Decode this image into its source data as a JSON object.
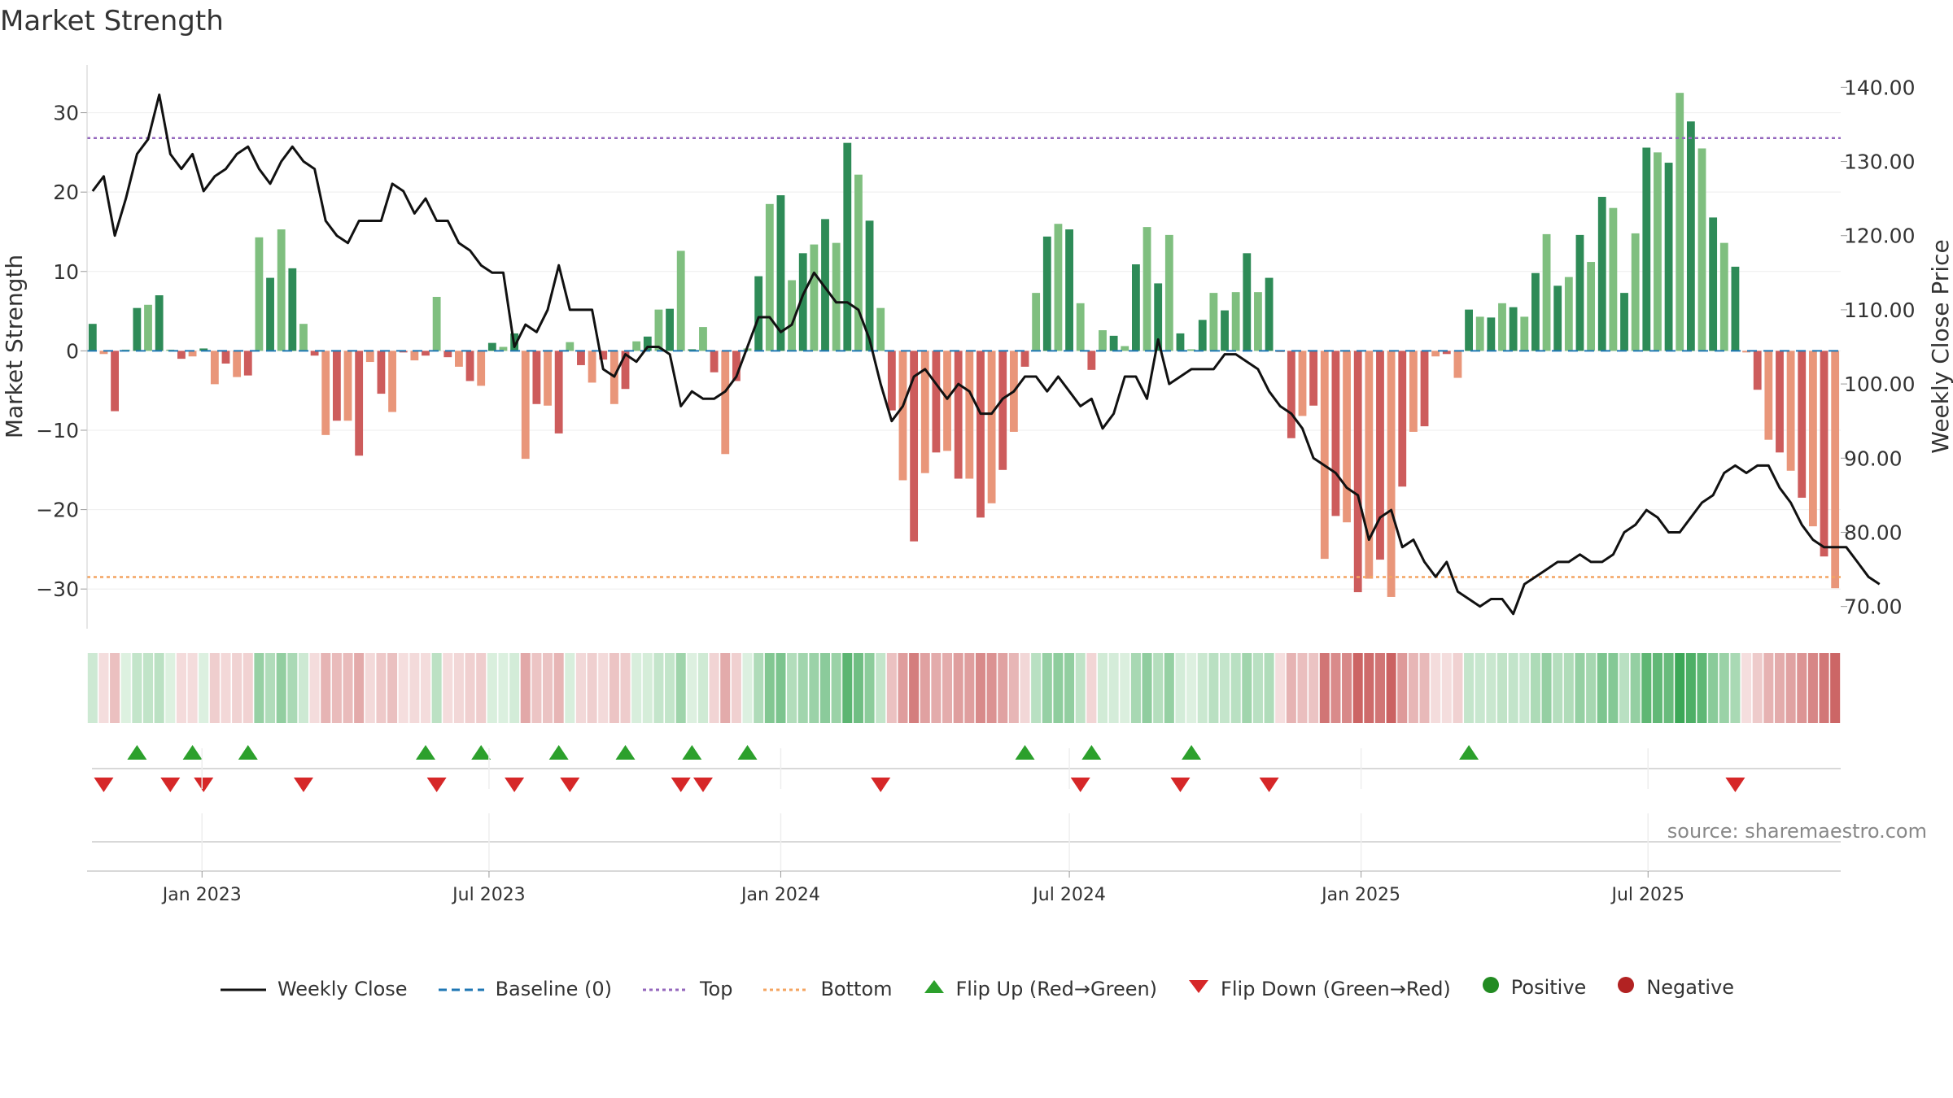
{
  "title": "Market Strength",
  "source": "source: sharemaestro.com",
  "colors": {
    "pos_dark": "#2e8b57",
    "pos_light": "#7fbf7f",
    "neg_dark": "#cd5c5c",
    "neg_light": "#e9967a",
    "close": "#111111",
    "baseline": "#1f77b4",
    "top": "#9467bd",
    "bottom": "#f4a460",
    "flip_up": "#2ca02c",
    "flip_down": "#d62728",
    "positive": "#228b22",
    "negative": "#b22222"
  },
  "legend": [
    {
      "key": "close",
      "label": "Weekly Close",
      "icon": "solid-line"
    },
    {
      "key": "baseline",
      "label": "Baseline (0)",
      "icon": "dashed-line"
    },
    {
      "key": "top",
      "label": "Top",
      "icon": "dotted-line"
    },
    {
      "key": "bottom",
      "label": "Bottom",
      "icon": "dotted-line"
    },
    {
      "key": "flip_up",
      "label": "Flip Up (Red→Green)",
      "icon": "triangle-up"
    },
    {
      "key": "flip_down",
      "label": "Flip Down (Green→Red)",
      "icon": "triangle-down"
    },
    {
      "key": "positive",
      "label": "Positive",
      "icon": "dot"
    },
    {
      "key": "negative",
      "label": "Negative",
      "icon": "dot"
    }
  ],
  "chart_data": {
    "type": "bar",
    "x_start": "2022-10-24",
    "x_step_days": 7,
    "xtick_labels": [
      "Jan 2023",
      "Jul 2023",
      "Jan 2024",
      "Jul 2024",
      "Jan 2025",
      "Jul 2025"
    ],
    "xtick_dates": [
      "2023-01-01",
      "2023-07-01",
      "2024-01-01",
      "2024-07-01",
      "2025-01-01",
      "2025-07-01"
    ],
    "ylabel": "Market Strength",
    "ylim": [
      -35,
      36
    ],
    "yticks": [
      -30,
      -20,
      -10,
      0,
      10,
      20,
      30
    ],
    "ytick_labels": [
      "−30",
      "−20",
      "−10",
      "0",
      "10",
      "20",
      "30"
    ],
    "y2label": "Weekly Close Price",
    "y2lim": [
      67,
      143
    ],
    "y2ticks": [
      70,
      80,
      90,
      100,
      110,
      120,
      130,
      140
    ],
    "y2tick_labels": [
      "70.00",
      "80.00",
      "90.00",
      "100.00",
      "110.00",
      "120.00",
      "130.00",
      "140.00"
    ],
    "top_level": 26.8,
    "bottom_level": -28.5,
    "strength": [
      3.4,
      -0.4,
      -7.6,
      0.1,
      5.4,
      5.8,
      7.0,
      0.1,
      -1.0,
      -0.7,
      0.3,
      -4.2,
      -1.6,
      -3.3,
      -3.1,
      14.3,
      9.2,
      15.3,
      10.4,
      3.4,
      -0.6,
      -10.6,
      -8.8,
      -8.8,
      -13.2,
      -1.4,
      -5.4,
      -7.7,
      -0.2,
      -1.2,
      -0.6,
      6.8,
      -0.8,
      -2.0,
      -3.8,
      -4.4,
      1.0,
      0.5,
      2.2,
      -13.6,
      -6.7,
      -6.9,
      -10.4,
      1.1,
      -1.8,
      -4.0,
      -1.1,
      -6.7,
      -4.8,
      1.2,
      1.8,
      5.2,
      5.3,
      12.6,
      0.2,
      3.0,
      -2.7,
      -13.0,
      -3.8,
      0.3,
      9.4,
      18.5,
      19.6,
      8.9,
      12.3,
      13.4,
      16.6,
      13.6,
      26.2,
      22.2,
      16.4,
      5.4,
      -7.5,
      -16.3,
      -24.0,
      -15.4,
      -12.8,
      -12.6,
      -16.1,
      -16.1,
      -21.0,
      -19.2,
      -15.0,
      -10.2,
      -2.0,
      7.3,
      14.4,
      16.0,
      15.3,
      6.0,
      -2.4,
      2.6,
      1.9,
      0.6,
      10.9,
      15.6,
      8.5,
      14.6,
      2.2,
      0.2,
      3.9,
      7.3,
      5.1,
      7.4,
      12.3,
      7.4,
      9.2,
      -0.1,
      -11.0,
      -8.2,
      -6.9,
      -26.2,
      -20.8,
      -21.6,
      -30.4,
      -28.7,
      -26.3,
      -31.0,
      -17.1,
      -10.2,
      -9.5,
      -0.7,
      -0.4,
      -3.4,
      5.2,
      4.3,
      4.2,
      6.0,
      5.5,
      4.3,
      9.8,
      14.7,
      8.2,
      9.3,
      14.6,
      11.2,
      19.4,
      18.0,
      7.3,
      14.8,
      25.6,
      25.0,
      23.7,
      32.5,
      28.9,
      25.5,
      16.8,
      13.6,
      10.6,
      -0.2,
      -4.9,
      -11.2,
      -12.8,
      -15.1,
      -18.5,
      -22.1,
      -25.9,
      -29.9
    ],
    "close": [
      126,
      128,
      120,
      125,
      131,
      133,
      139,
      131,
      129,
      131,
      126,
      128,
      129,
      131,
      132,
      129,
      127,
      130,
      132,
      130,
      129,
      122,
      120,
      119,
      122,
      122,
      122,
      127,
      126,
      123,
      125,
      122,
      122,
      119,
      118,
      116,
      115,
      115,
      105,
      108,
      107,
      110,
      116,
      110,
      110,
      110,
      102,
      101,
      104,
      103,
      105,
      105,
      104,
      97,
      99,
      98,
      98,
      99,
      101,
      105,
      109,
      109,
      107,
      108,
      112,
      115,
      113,
      111,
      111,
      110,
      106,
      100,
      95,
      97,
      101,
      102,
      100,
      98,
      100,
      99,
      96,
      96,
      98,
      99,
      101,
      101,
      99,
      101,
      99,
      97,
      98,
      94,
      96,
      101,
      101,
      98,
      106,
      100,
      101,
      102,
      102,
      102,
      104,
      104,
      103,
      102,
      99,
      97,
      96,
      94,
      90,
      89,
      88,
      86,
      85,
      79,
      82,
      83,
      78,
      79,
      76,
      74,
      76,
      72,
      71,
      70,
      71,
      71,
      69,
      73,
      74,
      75,
      76,
      76,
      77,
      76,
      76,
      77,
      80,
      81,
      83,
      82,
      80,
      80,
      82,
      84,
      85,
      88,
      89,
      88,
      89,
      89,
      86,
      84,
      81,
      79,
      78,
      78,
      78,
      76,
      74,
      73
    ],
    "flips_up": [
      4,
      9,
      14,
      30,
      35,
      42,
      48,
      54,
      59,
      84,
      90,
      99,
      124
    ],
    "flips_down": [
      1,
      7,
      10,
      19,
      31,
      38,
      43,
      53,
      55,
      71,
      89,
      98,
      106,
      148
    ]
  }
}
